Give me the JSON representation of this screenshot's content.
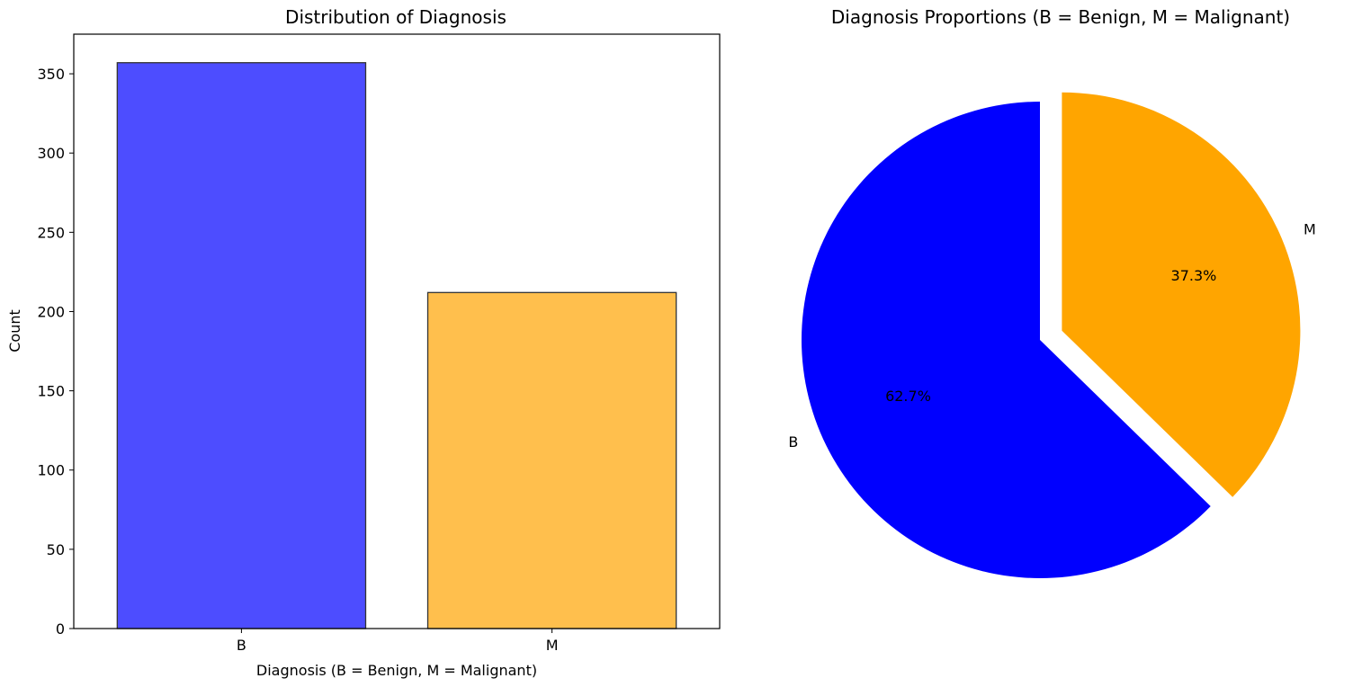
{
  "chart_data": [
    {
      "type": "bar",
      "title": "Distribution of Diagnosis",
      "xlabel": "Diagnosis (B = Benign, M = Malignant)",
      "ylabel": "Count",
      "categories": [
        "B",
        "M"
      ],
      "values": [
        357,
        212
      ],
      "colors": [
        "#4d4dff",
        "#ffbf4d"
      ],
      "edge_color": "#333333",
      "ylim": [
        0,
        375
      ],
      "yticks": [
        0,
        50,
        100,
        150,
        200,
        250,
        300,
        350
      ],
      "grid": false
    },
    {
      "type": "pie",
      "title": "Diagnosis Proportions (B = Benign, M = Malignant)",
      "labels": [
        "B",
        "M"
      ],
      "values": [
        62.7,
        37.3
      ],
      "value_labels": [
        "62.7%",
        "37.3%"
      ],
      "colors": [
        "#0000ff",
        "#ffa500"
      ],
      "explode": [
        0,
        0.1
      ],
      "start_angle_deg": 90
    }
  ]
}
